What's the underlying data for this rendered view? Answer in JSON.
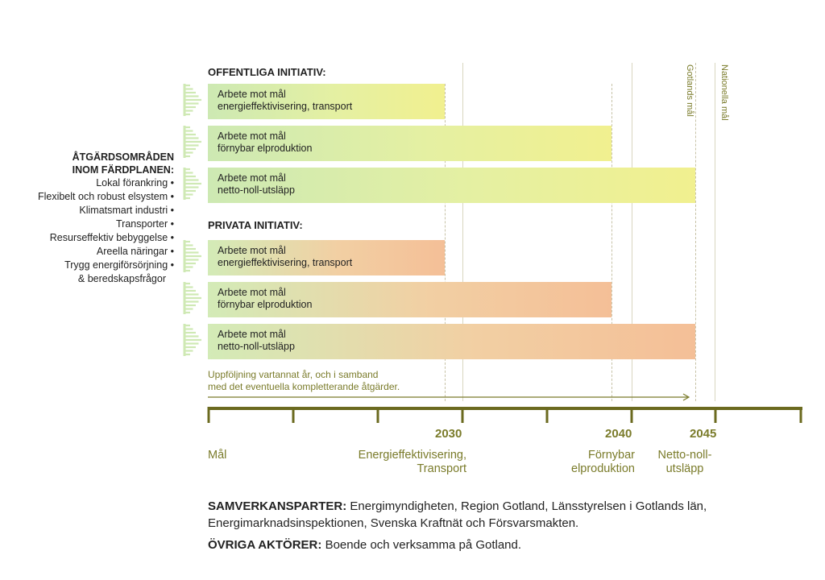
{
  "left_panel": {
    "heading_line1": "ÅTGÄRDSOMRÅDEN",
    "heading_line2": "INOM FÄRDPLANEN:",
    "items": [
      "Lokal förankring •",
      "Flexibelt och robust elsystem •",
      "Klimatsmart industri •",
      "Transporter •",
      "Resurseffektiv bebyggelse •",
      "Areella näringar •",
      "Trygg energiförsörjning •",
      "& beredskapsfrågor"
    ]
  },
  "public": {
    "title": "OFFENTLIGA INITIATIV:",
    "bars": [
      {
        "line1": "Arbete mot mål",
        "line2": "energieffektivisering, transport",
        "end_year": 2030
      },
      {
        "line1": "Arbete mot mål",
        "line2": "förnybar elproduktion",
        "end_year": 2040
      },
      {
        "line1": "Arbete mot mål",
        "line2": "netto-noll-utsläpp",
        "end_year": 2045
      }
    ]
  },
  "private": {
    "title": "PRIVATA INITIATIV:",
    "bars": [
      {
        "line1": "Arbete mot mål",
        "line2": "energieffektivisering, transport",
        "end_year": 2030
      },
      {
        "line1": "Arbete mot mål",
        "line2": "förnybar elproduktion",
        "end_year": 2040
      },
      {
        "line1": "Arbete mot mål",
        "line2": "netto-noll-utsläpp",
        "end_year": 2045
      }
    ]
  },
  "followup": {
    "line1": "Uppföljning vartannat år, och i samband",
    "line2": "med det eventuella kompletterande åtgärder."
  },
  "vertical_labels": {
    "gotland": "Gotlands mål",
    "national": "Nationella mål"
  },
  "timeline": {
    "tick_2030": "2030",
    "tick_2040": "2040",
    "tick_2045": "2045"
  },
  "goals": {
    "mal": "Mål",
    "energy_line1": "Energieffektivisering,",
    "energy_line2": "Transport",
    "renew_line1": "Förnybar",
    "renew_line2": "elproduktion",
    "netto_line1": "Netto-noll-",
    "netto_line2": "utsläpp"
  },
  "partners": {
    "label": "SAMVERKANSPARTER:",
    "line1": "Energimyndigheten, Region Gotland, Länsstyrelsen i Gotlands län,",
    "line2": "Energimarknadsinspektionen, Svenska Kraftnät och Försvarsmakten."
  },
  "others": {
    "label": "ÖVRIGA AKTÖRER:",
    "text": "Boende och verksamma på Gotland."
  },
  "colors": {
    "olive": "#7a7b2a",
    "axis": "#6b6a1f",
    "arrow_green": "#cfe9b4"
  }
}
